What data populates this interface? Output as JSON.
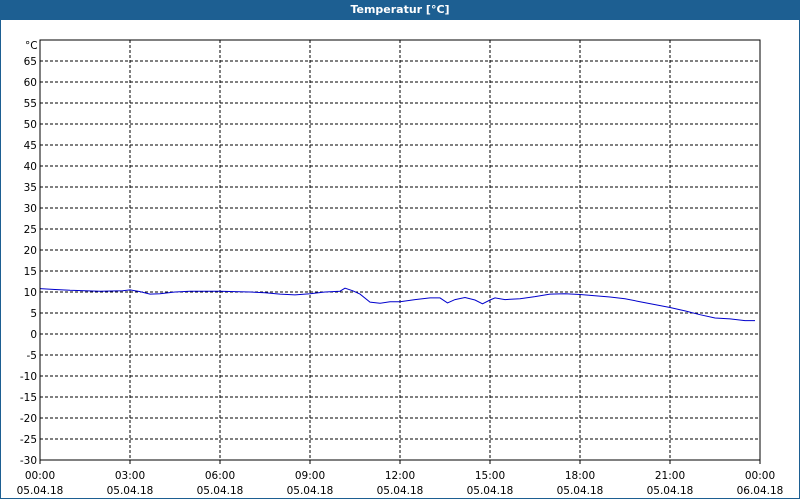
{
  "window": {
    "title": "Temperatur [°C]"
  },
  "chart_data": {
    "type": "line",
    "ylabel": "°C",
    "ylim": [
      -30,
      65
    ],
    "yticks": [
      -30,
      -25,
      -20,
      -15,
      -10,
      -5,
      0,
      5,
      10,
      15,
      20,
      25,
      30,
      35,
      40,
      45,
      50,
      55,
      60,
      65
    ],
    "xlim": [
      "2018-04-05 00:00",
      "2018-04-06 00:00"
    ],
    "xticks": [
      {
        "time": "00:00",
        "date": "05.04.18"
      },
      {
        "time": "03:00",
        "date": "05.04.18"
      },
      {
        "time": "06:00",
        "date": "05.04.18"
      },
      {
        "time": "09:00",
        "date": "05.04.18"
      },
      {
        "time": "12:00",
        "date": "05.04.18"
      },
      {
        "time": "15:00",
        "date": "05.04.18"
      },
      {
        "time": "18:00",
        "date": "05.04.18"
      },
      {
        "time": "21:00",
        "date": "05.04.18"
      },
      {
        "time": "00:00",
        "date": "06.04.18"
      }
    ],
    "grid": true,
    "series": [
      {
        "color": "#0000cc",
        "points": [
          [
            "00:00",
            10.8
          ],
          [
            "00:30",
            10.6
          ],
          [
            "01:00",
            10.4
          ],
          [
            "02:00",
            10.2
          ],
          [
            "02:45",
            10.3
          ],
          [
            "03:00",
            10.5
          ],
          [
            "03:20",
            10.1
          ],
          [
            "03:40",
            9.5
          ],
          [
            "04:00",
            9.6
          ],
          [
            "04:30",
            10.0
          ],
          [
            "05:00",
            10.2
          ],
          [
            "06:00",
            10.2
          ],
          [
            "06:30",
            10.1
          ],
          [
            "07:00",
            10.0
          ],
          [
            "07:30",
            9.8
          ],
          [
            "08:00",
            9.5
          ],
          [
            "08:30",
            9.3
          ],
          [
            "09:00",
            9.6
          ],
          [
            "09:30",
            10.0
          ],
          [
            "10:00",
            10.2
          ],
          [
            "10:10",
            10.9
          ],
          [
            "10:25",
            10.3
          ],
          [
            "10:40",
            9.5
          ],
          [
            "11:00",
            7.6
          ],
          [
            "11:20",
            7.3
          ],
          [
            "11:40",
            7.7
          ],
          [
            "12:00",
            7.7
          ],
          [
            "12:30",
            8.2
          ],
          [
            "13:00",
            8.6
          ],
          [
            "13:20",
            8.6
          ],
          [
            "13:35",
            7.4
          ],
          [
            "13:50",
            8.2
          ],
          [
            "14:10",
            8.7
          ],
          [
            "14:30",
            8.1
          ],
          [
            "14:45",
            7.2
          ],
          [
            "15:00",
            8.1
          ],
          [
            "15:10",
            8.6
          ],
          [
            "15:30",
            8.2
          ],
          [
            "16:00",
            8.4
          ],
          [
            "16:30",
            8.9
          ],
          [
            "17:00",
            9.5
          ],
          [
            "17:30",
            9.6
          ],
          [
            "18:00",
            9.4
          ],
          [
            "18:30",
            9.1
          ],
          [
            "19:00",
            8.8
          ],
          [
            "19:30",
            8.4
          ],
          [
            "20:00",
            7.7
          ],
          [
            "20:30",
            7.0
          ],
          [
            "21:00",
            6.3
          ],
          [
            "21:30",
            5.5
          ],
          [
            "22:00",
            4.6
          ],
          [
            "22:30",
            3.8
          ],
          [
            "23:00",
            3.6
          ],
          [
            "23:30",
            3.2
          ],
          [
            "23:50",
            3.2
          ]
        ]
      }
    ]
  }
}
